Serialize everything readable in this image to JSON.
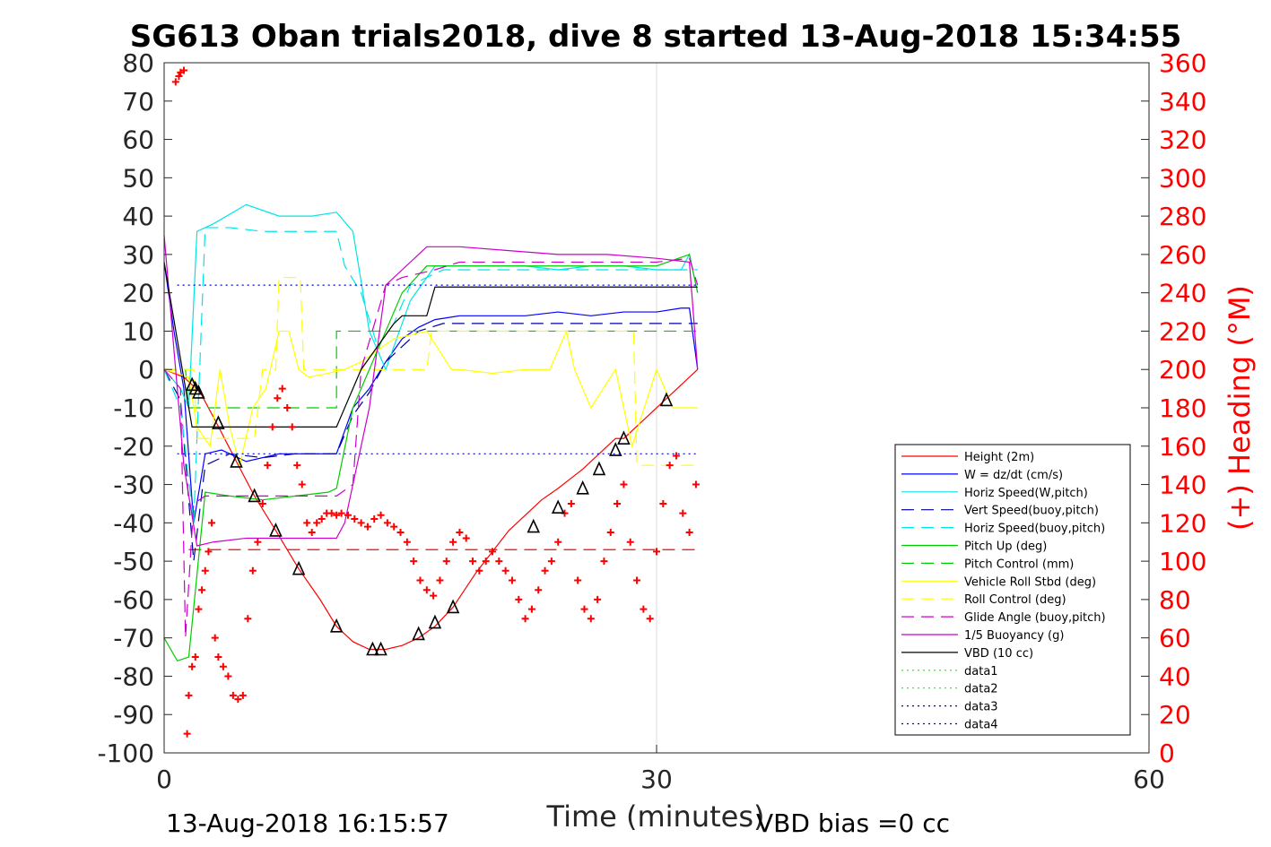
{
  "chart_data": {
    "type": "line",
    "title": "SG613 Oban trials2018, dive 8 started 13-Aug-2018 15:34:55",
    "xlabel": "Time (minutes)",
    "ylabel_right": "(+) Heading (°M)",
    "xlim": [
      0,
      60
    ],
    "ylim_left": [
      -100,
      80
    ],
    "ylim_right": [
      0,
      360
    ],
    "xticks": [
      "0",
      "30",
      "60"
    ],
    "yticks_left": [
      "80",
      "70",
      "60",
      "50",
      "40",
      "30",
      "20",
      "10",
      "0",
      "-10",
      "-20",
      "-30",
      "-40",
      "-50",
      "-60",
      "-70",
      "-80",
      "-90",
      "-100"
    ],
    "yticks_right": [
      "360",
      "340",
      "320",
      "300",
      "280",
      "260",
      "240",
      "220",
      "200",
      "180",
      "160",
      "140",
      "120",
      "100",
      "80",
      "60",
      "40",
      "20",
      "0"
    ],
    "grid": "x only",
    "legend_position": "lower-right",
    "footer_left": "13-Aug-2018 16:15:57",
    "footer_right": "VBD bias =0 cc",
    "series": [
      {
        "name": "Height (2m)",
        "color": "#ff0000",
        "style": "solid",
        "x": [
          0,
          1.2,
          1.7,
          2.2,
          3.2,
          4.4,
          5.5,
          6.8,
          8.2,
          9.5,
          10.5,
          11.5,
          12.5,
          13.5,
          14.5,
          15.5,
          16.5,
          17.6,
          19,
          21,
          23,
          24,
          25.5,
          26.5,
          27.5,
          28,
          30.5,
          32.5
        ],
        "y": [
          0,
          -2,
          -4,
          -6,
          -14,
          -24,
          -33,
          -42,
          -52,
          -60,
          -67,
          -71,
          -73,
          -73,
          -72,
          -70,
          -67,
          -62,
          -53,
          -42,
          -34,
          -31,
          -26,
          -22,
          -18,
          -18,
          -8,
          0
        ]
      },
      {
        "name": "W = dz/dt (cm/s)",
        "color": "#0000ff",
        "style": "solid",
        "x": [
          0,
          0.6,
          1.2,
          1.8,
          2.5,
          3.5,
          5,
          7,
          9,
          10.5,
          11.5,
          12.5,
          13.5,
          14.5,
          15.5,
          16.5,
          18,
          20,
          22,
          24,
          26,
          28,
          30,
          31.5,
          32,
          32.5
        ],
        "y": [
          28,
          10,
          -5,
          -40,
          -22,
          -21,
          -24,
          -22,
          -22,
          -22,
          -10,
          -5,
          2,
          8,
          11,
          13,
          14,
          14,
          14,
          15,
          14,
          15,
          15,
          16,
          16,
          0
        ]
      },
      {
        "name": "Horiz Speed(W,pitch)",
        "color": "#00e5e5",
        "style": "solid",
        "x": [
          0,
          1,
          1.5,
          2,
          3,
          5,
          7,
          9,
          10.5,
          11.5,
          12.5,
          13.5,
          15,
          16.5,
          18,
          20,
          22,
          24,
          26,
          28,
          30,
          31.5,
          32,
          32.5
        ],
        "y": [
          0,
          -5,
          -10,
          36,
          38,
          43,
          40,
          40,
          41,
          36,
          10,
          0,
          18,
          27,
          27,
          27,
          27,
          26,
          27,
          27,
          26,
          26,
          30,
          20
        ]
      },
      {
        "name": "Vert Speed(buoy,pitch)",
        "color": "#00009e",
        "style": "dashed",
        "x": [
          0,
          1,
          1.8,
          2.5,
          4,
          6,
          8,
          10,
          10.5,
          11.5,
          12.5,
          13.5,
          14.5,
          15.5,
          17,
          19,
          22,
          25,
          28,
          30,
          32,
          32.5
        ],
        "y": [
          0,
          -8,
          -50,
          -25,
          -22,
          -23,
          -22,
          -22,
          -22,
          -12,
          -6,
          2,
          6,
          10,
          12,
          12,
          12,
          12,
          12,
          12,
          12,
          12
        ]
      },
      {
        "name": "Horiz Speed(buoy,pitch)",
        "color": "#00e5e5",
        "style": "dashed",
        "x": [
          0,
          1,
          1.8,
          2.5,
          4,
          6,
          8,
          10,
          10.5,
          11,
          12,
          13,
          14,
          15,
          17,
          20,
          23,
          26,
          29,
          31,
          32.5
        ],
        "y": [
          0,
          -10,
          -40,
          37,
          37,
          36,
          36,
          36,
          36,
          27,
          20,
          6,
          12,
          22,
          26,
          26,
          26,
          26,
          26,
          26,
          26
        ]
      },
      {
        "name": "Pitch Up (deg)",
        "color": "#00cc00",
        "style": "solid",
        "x": [
          0,
          0.8,
          1.5,
          2.5,
          4,
          6,
          8,
          10,
          10.5,
          11.5,
          12.5,
          13.5,
          14.5,
          16,
          18,
          20,
          22,
          24,
          26,
          28,
          30,
          32,
          32.5
        ],
        "y": [
          -70,
          -76,
          -75,
          -32,
          -33,
          -34,
          -33,
          -32,
          -31,
          -10,
          0,
          10,
          20,
          27,
          27,
          27,
          27,
          27,
          27,
          27,
          27,
          30,
          20
        ]
      },
      {
        "name": "Pitch Control (mm)",
        "color": "#00cc00",
        "style": "dashed",
        "x": [
          0,
          1.3,
          1.5,
          5.8,
          5.8,
          10.5,
          10.5,
          32.5
        ],
        "y": [
          0,
          0,
          -10,
          -10,
          -10,
          -10,
          10,
          10
        ]
      },
      {
        "name": "Vehicle Roll Stbd (deg)",
        "color": "#ffff00",
        "style": "solid",
        "x": [
          0,
          1.5,
          2,
          2.8,
          3.4,
          4,
          4.6,
          5.4,
          6.2,
          7,
          7.6,
          8.2,
          8.8,
          10,
          11,
          12,
          14,
          16,
          17.5,
          18,
          20,
          22,
          23.5,
          24.5,
          25,
          26,
          27.5,
          28.5,
          30,
          31,
          32,
          32.5
        ],
        "y": [
          0,
          -2,
          -15,
          -20,
          0,
          -15,
          -25,
          -10,
          -5,
          10,
          10,
          0,
          -2,
          -1,
          0,
          2,
          8,
          10,
          0,
          0,
          -1,
          0,
          0,
          10,
          0,
          -10,
          0,
          -20,
          0,
          -10,
          -10,
          -10
        ]
      },
      {
        "name": "Roll Control (deg)",
        "color": "#ffff00",
        "style": "dashed",
        "x": [
          0,
          1.8,
          2,
          5.5,
          6,
          6.8,
          7,
          8.3,
          8.5,
          16,
          16.3,
          28.6,
          28.8,
          32.5
        ],
        "y": [
          0,
          0,
          -18,
          -18,
          0,
          0,
          24,
          24,
          0,
          0,
          10,
          10,
          -25,
          -25
        ]
      },
      {
        "name": "Glide Angle (buoy,pitch)",
        "color": "#cc00cc",
        "style": "dashed",
        "x": [
          0,
          1,
          1.3,
          1.8,
          2.5,
          5,
          8,
          10.5,
          11.5,
          12,
          13.5,
          14.5,
          16.5,
          18,
          20,
          22,
          24,
          26,
          28,
          30,
          32,
          32.5
        ],
        "y": [
          0,
          -5,
          -70,
          -35,
          -33,
          -33,
          -33,
          -33,
          -30,
          0,
          22,
          24,
          26,
          28,
          28,
          28,
          28,
          28,
          28,
          28,
          29,
          22
        ]
      },
      {
        "name": "1/5 Buoyancy (g)",
        "color": "#cc00cc",
        "style": "solid",
        "x": [
          0,
          1.2,
          2,
          3,
          5,
          8,
          10.5,
          11,
          12.5,
          13.5,
          16,
          18,
          21,
          24,
          27,
          30,
          32,
          32.5
        ],
        "y": [
          35,
          -25,
          -46,
          -45,
          -44,
          -44,
          -44,
          -40,
          -10,
          22,
          32,
          32,
          31,
          30,
          30,
          29,
          28,
          0
        ]
      },
      {
        "name": "VBD (10 cc)",
        "color": "#000000",
        "style": "solid",
        "x": [
          0,
          1.7,
          2.2,
          10.5,
          12,
          14,
          14.5,
          16,
          16.5,
          32.5
        ],
        "y": [
          28,
          -15,
          -15,
          -15,
          0,
          12,
          14,
          14,
          21.5,
          21.5
        ]
      },
      {
        "name": "data1",
        "color": "#00ff00",
        "style": "dotted",
        "x": [],
        "y": []
      },
      {
        "name": "data2",
        "color": "#00ff00",
        "style": "dotted",
        "x": [],
        "y": []
      },
      {
        "name": "data3",
        "color": "#0000cc",
        "style": "dotted",
        "x": [
          0.8,
          32.5
        ],
        "y": [
          22,
          22
        ]
      },
      {
        "name": "data4",
        "color": "#0000cc",
        "style": "dotted",
        "x": [
          0.8,
          32.5
        ],
        "y": [
          -22,
          -22
        ]
      }
    ],
    "reference_line": {
      "color": "#ff0000",
      "style": "dashed",
      "x": [
        1.5,
        32.5
      ],
      "y": [
        -47,
        -47
      ]
    },
    "markers": {
      "type": "triangles",
      "color": "#000000",
      "x": [
        1.7,
        1.9,
        2.1,
        3.3,
        4.4,
        5.5,
        6.8,
        8.2,
        10.5,
        12.7,
        13.2,
        15.5,
        16.5,
        17.6,
        22.5,
        24,
        25.5,
        26.5,
        27.5,
        28,
        30.6
      ],
      "y": [
        -4,
        -5,
        -6,
        -14,
        -24,
        -33,
        -42,
        -52,
        -67,
        -73,
        -73,
        -69,
        -66,
        -62,
        -41,
        -36,
        -31,
        -26,
        -21,
        -18,
        -8
      ]
    },
    "heading_series": {
      "name": "Heading",
      "axis": "right",
      "color": "#ff0000",
      "marker": "+",
      "x": [
        0.7,
        0.9,
        1.0,
        1.2,
        1.4,
        1.5,
        1.7,
        1.9,
        2.1,
        2.3,
        2.5,
        2.7,
        2.9,
        3.1,
        3.3,
        3.6,
        3.9,
        4.2,
        4.5,
        4.8,
        5.1,
        5.4,
        5.7,
        6.0,
        6.3,
        6.6,
        6.9,
        7.2,
        7.5,
        7.8,
        8.1,
        8.4,
        8.7,
        9.0,
        9.3,
        9.6,
        9.9,
        10.2,
        10.5,
        10.8,
        11.2,
        11.6,
        12.0,
        12.4,
        12.8,
        13.2,
        13.6,
        14.0,
        14.4,
        14.8,
        15.2,
        15.6,
        16.0,
        16.4,
        16.8,
        17.2,
        17.6,
        18.0,
        18.4,
        18.8,
        19.2,
        19.6,
        20.0,
        20.4,
        20.8,
        21.2,
        21.6,
        22.0,
        22.4,
        22.8,
        23.2,
        23.6,
        24.0,
        24.4,
        24.8,
        25.2,
        25.6,
        26.0,
        26.4,
        26.8,
        27.2,
        27.6,
        28.0,
        28.4,
        28.8,
        29.2,
        29.6,
        30.0,
        30.4,
        30.8,
        31.2,
        31.6,
        32.0,
        32.4
      ],
      "y": [
        350,
        353,
        355,
        356,
        10,
        30,
        45,
        50,
        75,
        85,
        95,
        105,
        120,
        60,
        50,
        45,
        40,
        30,
        28,
        30,
        70,
        95,
        110,
        130,
        150,
        170,
        185,
        190,
        180,
        170,
        150,
        140,
        120,
        115,
        120,
        122,
        125,
        125,
        124,
        125,
        124,
        122,
        120,
        118,
        122,
        124,
        120,
        118,
        115,
        110,
        100,
        90,
        85,
        82,
        90,
        100,
        110,
        115,
        112,
        100,
        95,
        100,
        105,
        100,
        95,
        90,
        80,
        70,
        75,
        85,
        95,
        100,
        110,
        125,
        130,
        90,
        75,
        70,
        80,
        100,
        115,
        130,
        140,
        110,
        90,
        75,
        70,
        105,
        130,
        150,
        155,
        125,
        115,
        140
      ]
    }
  }
}
